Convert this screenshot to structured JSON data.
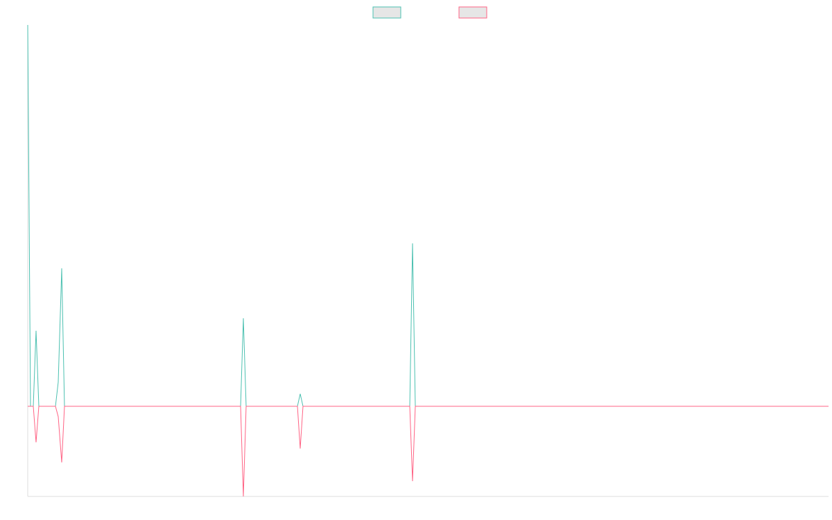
{
  "chart_data": {
    "type": "line",
    "x": [
      0,
      4,
      8,
      12,
      16,
      40,
      44,
      49,
      53,
      307,
      311,
      315,
      389,
      393,
      397,
      551,
      555,
      559,
      1155
    ],
    "xlim": [
      0,
      1155
    ],
    "ylim": [
      -130,
      550
    ],
    "legend": "top",
    "series": [
      {
        "color": "#4bc0b0",
        "values": [
          550,
          0,
          0,
          109,
          0,
          0,
          35,
          199,
          0,
          0,
          127,
          0,
          0,
          18,
          0,
          0,
          235,
          0,
          0
        ]
      },
      {
        "color": "#ff6384",
        "values": [
          0,
          0,
          0,
          -52,
          0,
          0,
          -15,
          -81,
          0,
          0,
          -130,
          0,
          0,
          -61,
          0,
          0,
          -108,
          0,
          0
        ]
      }
    ]
  }
}
